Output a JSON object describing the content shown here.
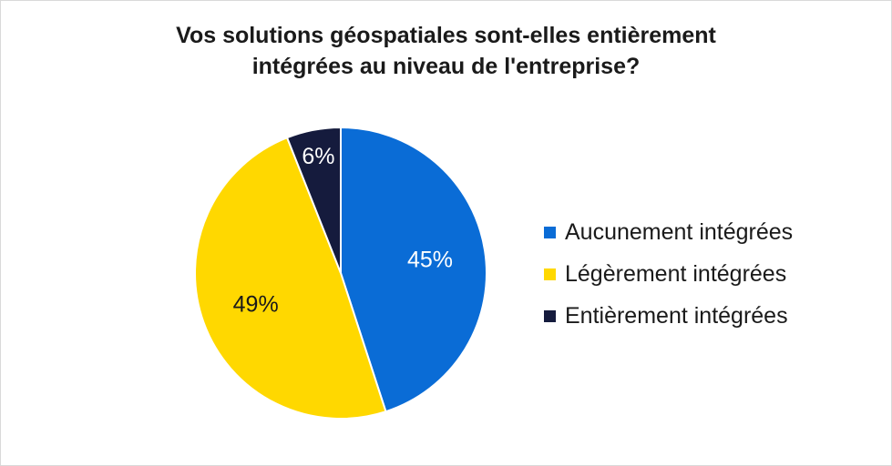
{
  "chart_data": {
    "type": "pie",
    "title": [
      "Vos solutions géospatiales sont-elles entièrement",
      "intégrées au niveau de l'entreprise?"
    ],
    "categories": [
      "Aucunement intégrées",
      "Légèrement intégrées",
      "Entièrement intégrées"
    ],
    "values": [
      45,
      49,
      6
    ],
    "data_labels": [
      "45%",
      "49%",
      "6%"
    ],
    "colors": [
      "#0A6CD6",
      "#FFD800",
      "#151B3D"
    ],
    "label_colors": [
      "#ffffff",
      "#1a1a1a",
      "#ffffff"
    ],
    "legend_position": "right",
    "start_angle": "top, clockwise"
  }
}
